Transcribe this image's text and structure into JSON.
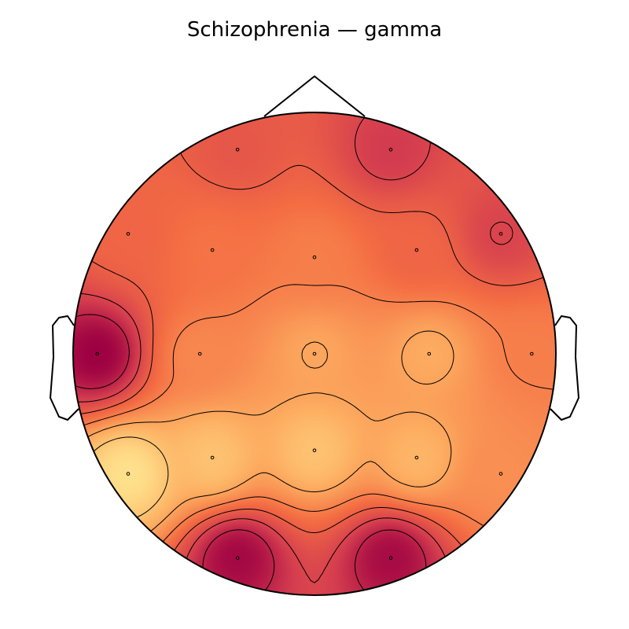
{
  "chart_data": {
    "type": "heatmap",
    "subtype": "scalp-topography",
    "title": "Schizophrenia — gamma",
    "colormap": "Spectral",
    "colormap_stops": [
      "#9e0142",
      "#d53e4f",
      "#f46d43",
      "#fdae61",
      "#fee08b"
    ],
    "contour_lines": 6,
    "outline_color": "#000000",
    "sensors": [
      {
        "x": -0.319,
        "y": 0.846,
        "value": 0.35
      },
      {
        "x": 0.316,
        "y": 0.846,
        "value": 0.22
      },
      {
        "x": -0.772,
        "y": 0.497,
        "value": 0.42
      },
      {
        "x": -0.423,
        "y": 0.43,
        "value": 0.48
      },
      {
        "x": 0.0,
        "y": 0.4,
        "value": 0.52
      },
      {
        "x": 0.423,
        "y": 0.43,
        "value": 0.42
      },
      {
        "x": 0.772,
        "y": 0.497,
        "value": 0.26
      },
      {
        "x": -0.9,
        "y": 0.0,
        "value": 0.0
      },
      {
        "x": -0.475,
        "y": 0.0,
        "value": 0.55
      },
      {
        "x": 0.0,
        "y": 0.0,
        "value": 0.66
      },
      {
        "x": 0.475,
        "y": 0.0,
        "value": 0.68
      },
      {
        "x": 0.9,
        "y": 0.0,
        "value": 0.52
      },
      {
        "x": -0.772,
        "y": -0.497,
        "value": 0.92
      },
      {
        "x": -0.423,
        "y": -0.43,
        "value": 0.78
      },
      {
        "x": 0.0,
        "y": -0.4,
        "value": 0.78
      },
      {
        "x": 0.423,
        "y": -0.43,
        "value": 0.72
      },
      {
        "x": 0.772,
        "y": -0.497,
        "value": 0.58
      },
      {
        "x": -0.319,
        "y": -0.846,
        "value": 0.03
      },
      {
        "x": 0.316,
        "y": -0.846,
        "value": 0.04
      }
    ]
  }
}
